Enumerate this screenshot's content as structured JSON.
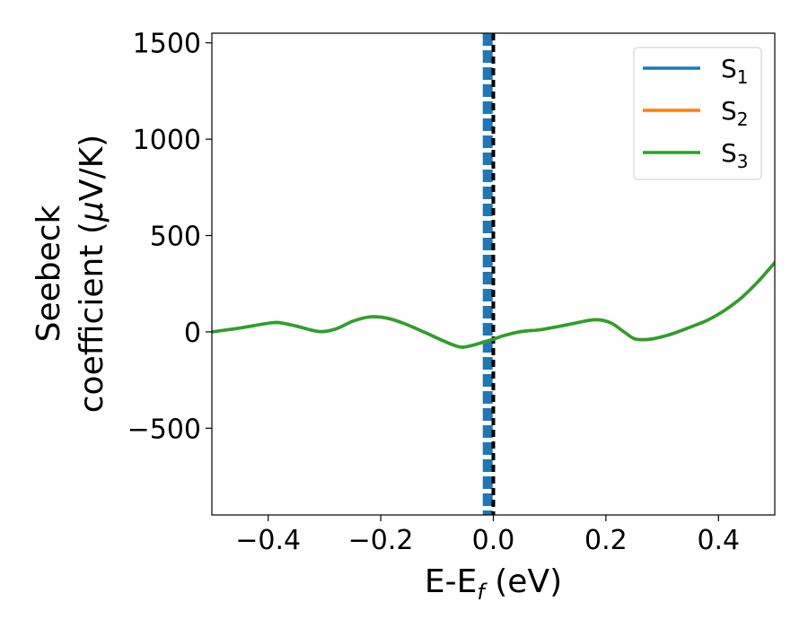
{
  "chart_data": {
    "type": "line",
    "title": "",
    "xlabel": {
      "main": "E-E",
      "sub": "f",
      "rest": " (eV)"
    },
    "ylabel": {
      "line1": "Seebeck",
      "line2": "coefficient  (",
      "mu": "μ",
      "unit": "V/K)"
    },
    "xlim": [
      -0.5,
      0.5
    ],
    "ylim": [
      -950,
      1550
    ],
    "xticks": [
      {
        "value": -0.4,
        "label": "−0.4"
      },
      {
        "value": -0.2,
        "label": "−0.2"
      },
      {
        "value": 0.0,
        "label": "0.0"
      },
      {
        "value": 0.2,
        "label": "0.2"
      },
      {
        "value": 0.4,
        "label": "0.4"
      }
    ],
    "yticks": [
      {
        "value": -500,
        "label": "−500"
      },
      {
        "value": 0,
        "label": "0"
      },
      {
        "value": 500,
        "label": "500"
      },
      {
        "value": 1000,
        "label": "1000"
      },
      {
        "value": 1500,
        "label": "1500"
      }
    ],
    "grid": false,
    "legend_position": "top-right",
    "vertical_markers": [
      {
        "x": -0.01,
        "color": "#1f77b4",
        "style": "dashed"
      },
      {
        "x": 0.0,
        "color": "#000000",
        "style": "dashed"
      }
    ],
    "x": [
      -0.5,
      -0.45,
      -0.4,
      -0.38,
      -0.35,
      -0.31,
      -0.28,
      -0.25,
      -0.22,
      -0.19,
      -0.16,
      -0.12,
      -0.09,
      -0.06,
      -0.04,
      -0.02,
      0.0,
      0.02,
      0.05,
      0.08,
      0.11,
      0.14,
      0.17,
      0.19,
      0.21,
      0.23,
      0.25,
      0.27,
      0.29,
      0.32,
      0.35,
      0.38,
      0.41,
      0.44,
      0.47,
      0.5
    ],
    "series": [
      {
        "name": {
          "base": "S",
          "sub": "1"
        },
        "color": "#1f77b4",
        "values": [
          0,
          20,
          45,
          48,
          30,
          2,
          15,
          55,
          78,
          72,
          45,
          -5,
          -45,
          -78,
          -72,
          -55,
          -38,
          -18,
          2,
          10,
          25,
          42,
          60,
          62,
          45,
          5,
          -35,
          -40,
          -32,
          -8,
          25,
          60,
          110,
          175,
          260,
          360
        ]
      },
      {
        "name": {
          "base": "S",
          "sub": "2"
        },
        "color": "#ff7f0e",
        "values": [
          0,
          20,
          45,
          48,
          30,
          2,
          15,
          55,
          78,
          72,
          45,
          -5,
          -45,
          -78,
          -72,
          -55,
          -38,
          -18,
          2,
          10,
          25,
          42,
          60,
          62,
          45,
          5,
          -35,
          -40,
          -32,
          -8,
          25,
          60,
          110,
          175,
          260,
          360
        ]
      },
      {
        "name": {
          "base": "S",
          "sub": "3"
        },
        "color": "#2ca02c",
        "values": [
          0,
          20,
          45,
          48,
          30,
          2,
          15,
          55,
          78,
          72,
          45,
          -5,
          -45,
          -78,
          -72,
          -55,
          -38,
          -18,
          2,
          10,
          25,
          42,
          60,
          62,
          45,
          5,
          -35,
          -40,
          -32,
          -8,
          25,
          60,
          110,
          175,
          260,
          360
        ]
      }
    ]
  }
}
